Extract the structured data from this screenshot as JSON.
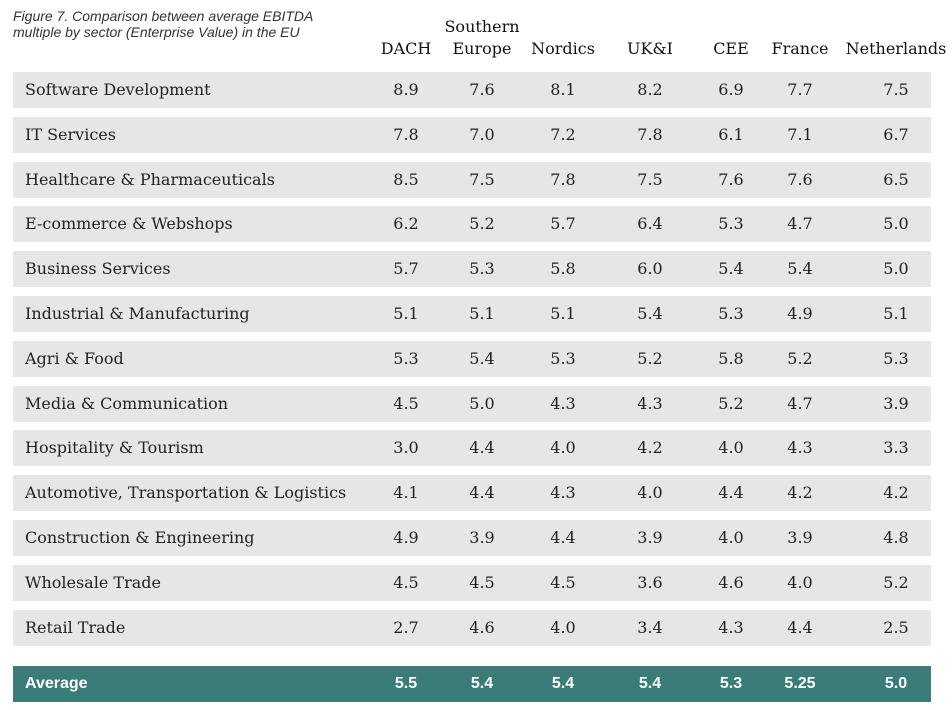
{
  "chart_data": {
    "type": "table",
    "title": "Figure 7. Comparison between average EBITDA multiple by sector (Enterprise Value) in the EU",
    "columns": [
      "DACH",
      "Southern Europe",
      "Nordics",
      "UK&I",
      "CEE",
      "France",
      "Netherlands"
    ],
    "column_header_lines": [
      [
        "DACH"
      ],
      [
        "Southern",
        "Europe"
      ],
      [
        "Nordics"
      ],
      [
        "UK&I"
      ],
      [
        "CEE"
      ],
      [
        "France"
      ],
      [
        "Netherlands"
      ]
    ],
    "rows": [
      {
        "label": "Software Development",
        "values": [
          "8.9",
          "7.6",
          "8.1",
          "8.2",
          "6.9",
          "7.7",
          "7.5"
        ]
      },
      {
        "label": "IT Services",
        "values": [
          "7.8",
          "7.0",
          "7.2",
          "7.8",
          "6.1",
          "7.1",
          "6.7"
        ]
      },
      {
        "label": "Healthcare & Pharmaceuticals",
        "values": [
          "8.5",
          "7.5",
          "7.8",
          "7.5",
          "7.6",
          "7.6",
          "6.5"
        ]
      },
      {
        "label": "E-commerce & Webshops",
        "values": [
          "6.2",
          "5.2",
          "5.7",
          "6.4",
          "5.3",
          "4.7",
          "5.0"
        ]
      },
      {
        "label": "Business Services",
        "values": [
          "5.7",
          "5.3",
          "5.8",
          "6.0",
          "5.4",
          "5.4",
          "5.0"
        ]
      },
      {
        "label": "Industrial & Manufacturing",
        "values": [
          "5.1",
          "5.1",
          "5.1",
          "5.4",
          "5.3",
          "4.9",
          "5.1"
        ]
      },
      {
        "label": "Agri & Food",
        "values": [
          "5.3",
          "5.4",
          "5.3",
          "5.2",
          "5.8",
          "5.2",
          "5.3"
        ]
      },
      {
        "label": "Media & Communication",
        "values": [
          "4.5",
          "5.0",
          "4.3",
          "4.3",
          "5.2",
          "4.7",
          "3.9"
        ]
      },
      {
        "label": "Hospitality & Tourism",
        "values": [
          "3.0",
          "4.4",
          "4.0",
          "4.2",
          "4.0",
          "4.3",
          "3.3"
        ]
      },
      {
        "label": "Automotive, Transportation & Logistics",
        "values": [
          "4.1",
          "4.4",
          "4.3",
          "4.0",
          "4.4",
          "4.2",
          "4.2"
        ]
      },
      {
        "label": "Construction & Engineering",
        "values": [
          "4.9",
          "3.9",
          "4.4",
          "3.9",
          "4.0",
          "3.9",
          "4.8"
        ]
      },
      {
        "label": "Wholesale Trade",
        "values": [
          "4.5",
          "4.5",
          "4.5",
          "3.6",
          "4.6",
          "4.0",
          "5.2"
        ]
      },
      {
        "label": "Retail Trade",
        "values": [
          "2.7",
          "4.6",
          "4.0",
          "3.4",
          "4.3",
          "4.4",
          "2.5"
        ]
      }
    ],
    "average": {
      "label": "Average",
      "values": [
        "5.5",
        "5.4",
        "5.4",
        "5.4",
        "5.3",
        "5.25",
        "5.0"
      ]
    }
  },
  "colors": {
    "row_background": "#e6e6e6",
    "average_background": "#3a7d78",
    "average_text": "#ffffff"
  }
}
